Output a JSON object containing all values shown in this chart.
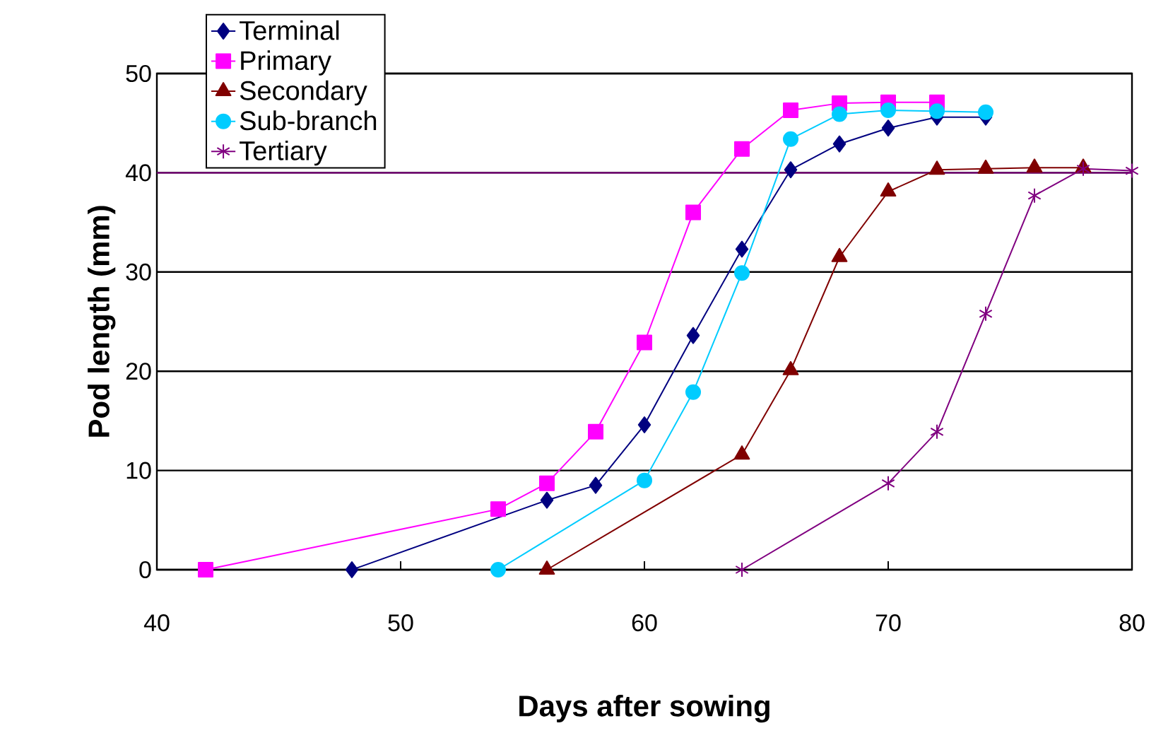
{
  "chart_data": {
    "type": "line",
    "xlabel": "Days after sowing",
    "ylabel": "Pod length (mm)",
    "xlim": [
      40,
      80
    ],
    "ylim": [
      0,
      50
    ],
    "xticks": [
      40,
      50,
      60,
      70,
      80
    ],
    "yticks": [
      0,
      10,
      20,
      30,
      40,
      50
    ],
    "grid": "y",
    "legend": "top left",
    "line_style": "solid",
    "series": [
      {
        "name": "Terminal",
        "color": "#000080",
        "marker": "diamond",
        "x": [
          48,
          56,
          58,
          60,
          62,
          64,
          66,
          68,
          70,
          72,
          74
        ],
        "values": [
          0,
          7,
          8.5,
          14.6,
          23.6,
          32.3,
          40.3,
          42.9,
          44.5,
          45.6,
          45.6
        ]
      },
      {
        "name": "Primary",
        "color": "#ff00ff",
        "marker": "square",
        "x": [
          42,
          54,
          56,
          58,
          60,
          62,
          64,
          66,
          68,
          70,
          72
        ],
        "values": [
          0,
          6.1,
          8.7,
          13.9,
          22.9,
          36,
          42.4,
          46.3,
          47,
          47.1,
          47.1
        ]
      },
      {
        "name": "Secondary",
        "color": "#800000",
        "marker": "triangle",
        "x": [
          56,
          64,
          66,
          68,
          70,
          72,
          74,
          76,
          78
        ],
        "values": [
          0,
          11.6,
          20.1,
          31.5,
          38.1,
          40.3,
          40.4,
          40.5,
          40.5
        ]
      },
      {
        "name": "Sub-branch",
        "color": "#00ccff",
        "marker": "circle",
        "x": [
          54,
          60,
          62,
          64,
          66,
          68,
          70,
          72,
          74
        ],
        "values": [
          0,
          9,
          17.9,
          29.9,
          43.4,
          45.9,
          46.3,
          46.2,
          46.1
        ]
      },
      {
        "name": "Tertiary",
        "color": "#800080",
        "marker": "cross",
        "x": [
          64,
          70,
          72,
          74,
          76,
          78,
          80
        ],
        "values": [
          0,
          8.7,
          13.9,
          25.8,
          37.7,
          40.4,
          40.2
        ]
      }
    ],
    "ref_lines": [
      {
        "axis": "y",
        "value": 40,
        "color": "#800080"
      }
    ]
  }
}
